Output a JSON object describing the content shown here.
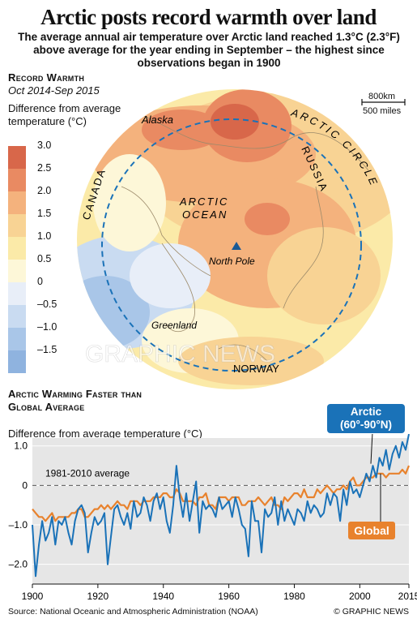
{
  "title": "Arctic posts record warmth over land",
  "subtitle": "The average annual air temperature over Arctic land reached 1.3°C (2.3°F) above average for the year ending in September – the highest since observations began in 1900",
  "map": {
    "heading": "Record Warmth",
    "period": "Oct 2014-Sep 2015",
    "legend_title": "Difference from average temperature (°C)",
    "legend": [
      {
        "label": "3.0",
        "color": "#d8674a"
      },
      {
        "label": "2.5",
        "color": "#e98a62"
      },
      {
        "label": "2.0",
        "color": "#f4b27d"
      },
      {
        "label": "1.5",
        "color": "#f8d394"
      },
      {
        "label": "1.0",
        "color": "#fbeaa8"
      },
      {
        "label": "0.5",
        "color": "#fdf7d8"
      },
      {
        "label": "0",
        "color": "#e8eef8"
      },
      {
        "label": "–0.5",
        "color": "#c9dbf1"
      },
      {
        "label": "–1.0",
        "color": "#a9c6e8"
      },
      {
        "label": "–1.5",
        "color": "#8fb3df"
      }
    ],
    "labels": {
      "alaska": "Alaska",
      "canada": "CANADA",
      "russia": "RUSSIA",
      "ocean_1": "ARCTIC",
      "ocean_2": "OCEAN",
      "north_pole": "North Pole",
      "greenland": "Greenland",
      "norway": "NORWAY",
      "arctic_circle": "ARCTIC CIRCLE"
    },
    "scale_km": "800km",
    "scale_mi": "500 miles",
    "watermark": "GRAPHIC NEWS"
  },
  "chart_heading": "Arctic Warming Faster than Global Average",
  "chart_ylabel": "Difference from average temperature (°C)",
  "chart_data": {
    "type": "line",
    "ylim": [
      -2.5,
      1.2
    ],
    "xlim": [
      1900,
      2015
    ],
    "yticks": [
      {
        "v": 1.0,
        "label": "1.0"
      },
      {
        "v": 0,
        "label": "0"
      },
      {
        "v": -1.0,
        "label": "–1.0"
      },
      {
        "v": -2.0,
        "label": "–2.0"
      }
    ],
    "xticks": [
      {
        "v": 1900,
        "label": "1900"
      },
      {
        "v": 1920,
        "label": "1920"
      },
      {
        "v": 1940,
        "label": "1940"
      },
      {
        "v": 1960,
        "label": "1960"
      },
      {
        "v": 1980,
        "label": "1980"
      },
      {
        "v": 2000,
        "label": "2000"
      },
      {
        "v": 2015,
        "label": "2015"
      }
    ],
    "reference_line": {
      "value": 0,
      "label": "1981-2010 average"
    },
    "grid": false,
    "x_start": 1900,
    "series": [
      {
        "name": "Arctic (60°-90°N)",
        "color": "#1a72b8",
        "label_color": "#1a72b8",
        "values": [
          -1.0,
          -2.3,
          -1.5,
          -0.9,
          -1.4,
          -1.2,
          -0.8,
          -1.5,
          -0.9,
          -1.0,
          -0.8,
          -1.2,
          -1.5,
          -0.9,
          -0.6,
          -0.5,
          -0.7,
          -1.7,
          -1.2,
          -0.8,
          -1.0,
          -0.9,
          -0.7,
          -2.0,
          -1.3,
          -0.6,
          -0.5,
          -0.8,
          -1.0,
          -0.7,
          -1.1,
          -0.4,
          -0.8,
          -0.7,
          -0.3,
          -0.5,
          -0.9,
          -0.4,
          -0.2,
          -0.6,
          -0.3,
          -0.9,
          -1.2,
          -0.5,
          0.5,
          -0.3,
          -0.8,
          -0.2,
          -0.9,
          -0.4,
          0.1,
          -1.2,
          -0.4,
          -0.6,
          -0.5,
          -0.6,
          -0.8,
          -0.3,
          -0.6,
          -0.5,
          -0.4,
          -0.8,
          -0.3,
          -0.6,
          -1.0,
          -1.1,
          -1.8,
          -0.4,
          -0.9,
          -0.9,
          -1.7,
          -0.6,
          -0.8,
          -0.7,
          -0.3,
          -1.0,
          -0.4,
          -0.9,
          -0.6,
          -0.8,
          -1.0,
          -0.6,
          -0.7,
          -0.9,
          -0.4,
          -0.7,
          -0.5,
          -0.6,
          -0.8,
          -0.7,
          -0.2,
          -0.5,
          -0.2,
          -0.3,
          -0.9,
          -0.1,
          -0.5,
          0.1,
          -0.2,
          -0.1,
          -0.3,
          0.0,
          0.3,
          0.1,
          0.5,
          0.2,
          0.7,
          0.5,
          0.9,
          0.4,
          0.8,
          1.0,
          0.7,
          1.1,
          0.9,
          1.3
        ]
      },
      {
        "name": "Global",
        "color": "#e8822d",
        "label_color": "#e8822d",
        "values": [
          -0.6,
          -0.7,
          -0.8,
          -0.8,
          -0.9,
          -0.8,
          -0.7,
          -0.9,
          -0.8,
          -0.8,
          -0.8,
          -0.8,
          -0.7,
          -0.7,
          -0.6,
          -0.6,
          -0.8,
          -0.8,
          -0.7,
          -0.6,
          -0.6,
          -0.5,
          -0.6,
          -0.5,
          -0.6,
          -0.5,
          -0.4,
          -0.5,
          -0.5,
          -0.6,
          -0.4,
          -0.4,
          -0.4,
          -0.5,
          -0.4,
          -0.4,
          -0.4,
          -0.3,
          -0.3,
          -0.3,
          -0.2,
          -0.2,
          -0.3,
          -0.3,
          -0.1,
          -0.2,
          -0.4,
          -0.4,
          -0.4,
          -0.4,
          -0.5,
          -0.3,
          -0.3,
          -0.2,
          -0.5,
          -0.5,
          -0.6,
          -0.3,
          -0.3,
          -0.3,
          -0.4,
          -0.3,
          -0.3,
          -0.3,
          -0.5,
          -0.5,
          -0.4,
          -0.4,
          -0.4,
          -0.3,
          -0.4,
          -0.5,
          -0.4,
          -0.3,
          -0.5,
          -0.5,
          -0.6,
          -0.3,
          -0.4,
          -0.3,
          -0.2,
          -0.2,
          -0.3,
          -0.1,
          -0.3,
          -0.3,
          -0.3,
          -0.1,
          -0.2,
          -0.1,
          0.0,
          -0.1,
          -0.2,
          -0.1,
          -0.1,
          0.0,
          -0.1,
          0.1,
          0.2,
          0.0,
          0.0,
          0.1,
          0.2,
          0.2,
          0.2,
          0.3,
          0.3,
          0.3,
          0.2,
          0.3,
          0.3,
          0.3,
          0.3,
          0.4,
          0.3,
          0.5
        ]
      }
    ]
  },
  "source": "Source: National Oceanic and Atmospheric Administration (NOAA)",
  "credit": "© GRAPHIC NEWS"
}
